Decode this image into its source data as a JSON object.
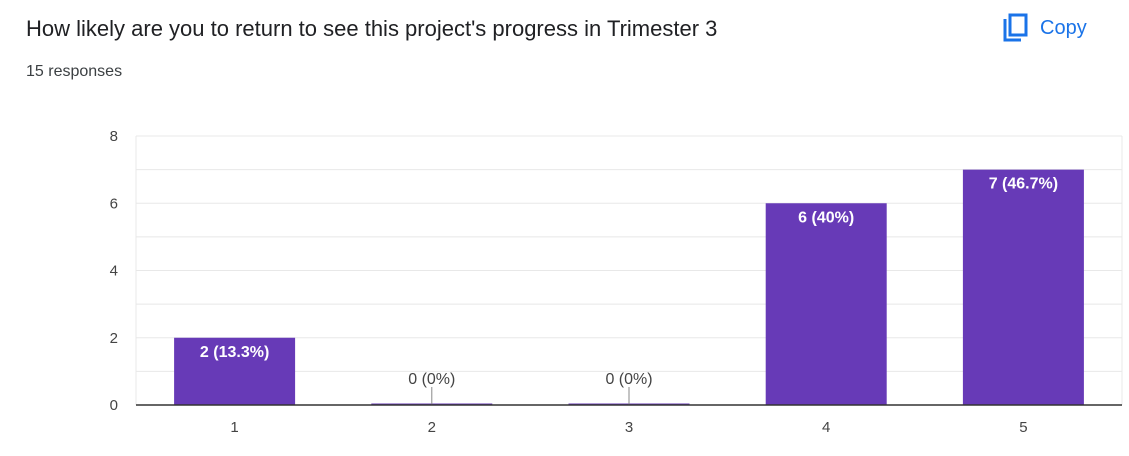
{
  "header": {
    "title": "How likely are you to return to see this project's progress in Trimester 3",
    "responses": "15 responses",
    "copy_label": "Copy",
    "copy_icon": "copy-icon"
  },
  "colors": {
    "bar": "#673ab7",
    "accent": "#1a73e8",
    "gridline": "#e8e8e8",
    "axis": "#333333"
  },
  "chart_data": {
    "type": "bar",
    "categories": [
      "1",
      "2",
      "3",
      "4",
      "5"
    ],
    "values": [
      2,
      0,
      0,
      6,
      7
    ],
    "data_labels": [
      "2 (13.3%)",
      "0 (0%)",
      "0 (0%)",
      "6 (40%)",
      "7 (46.7%)"
    ],
    "y_ticks": [
      "0",
      "2",
      "4",
      "6",
      "8"
    ],
    "ylim": [
      0,
      8
    ],
    "title": "",
    "xlabel": "",
    "ylabel": "",
    "grid": true,
    "legend": "none"
  }
}
